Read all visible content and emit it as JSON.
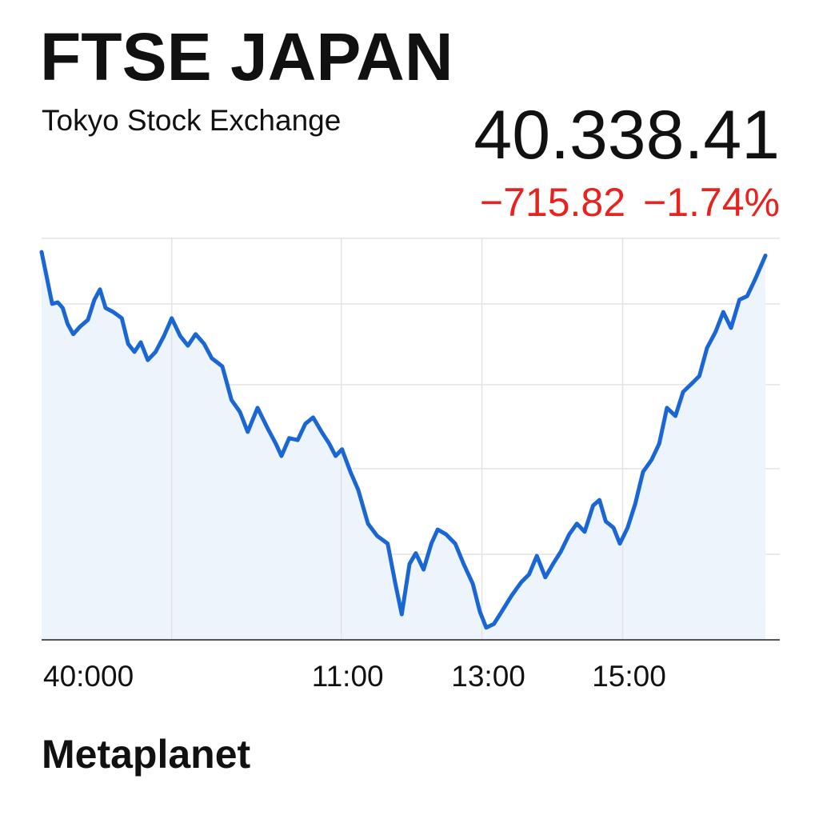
{
  "header": {
    "price": "40.338.41",
    "change": "−715.82",
    "change_percent": "−1.74%"
  },
  "footer": "Metaplanet",
  "chart_data": {
    "type": "line",
    "title": "FTSE JAPAN",
    "subtitle": "Tokyo Stock Exchange",
    "x": [
      6.74,
      6.81,
      6.89,
      6.97,
      7.04,
      7.11,
      7.19,
      7.29,
      7.4,
      7.49,
      7.57,
      7.65,
      7.76,
      7.88,
      7.97,
      8.06,
      8.15,
      8.25,
      8.36,
      8.48,
      8.59,
      8.71,
      8.82,
      8.93,
      9.05,
      9.16,
      9.31,
      9.44,
      9.56,
      9.67,
      9.81,
      9.95,
      10.07,
      10.15,
      10.26,
      10.38,
      10.49,
      10.6,
      10.72,
      10.83,
      10.92,
      11.01,
      11.13,
      11.24,
      11.38,
      11.51,
      11.66,
      11.77,
      11.86,
      11.97,
      12.06,
      12.17,
      12.28,
      12.37,
      12.49,
      12.62,
      12.74,
      12.87,
      12.97,
      13.06,
      13.17,
      13.28,
      13.42,
      13.56,
      13.67,
      13.78,
      13.9,
      14.01,
      14.12,
      14.24,
      14.35,
      14.46,
      14.58,
      14.67,
      14.76,
      14.87,
      14.96,
      15.07,
      15.18,
      15.29,
      15.41,
      15.52,
      15.63,
      15.75,
      15.86,
      15.98,
      16.09,
      16.2,
      16.32,
      16.43,
      16.54,
      16.66,
      16.77,
      16.88,
      17.03
    ],
    "series": [
      {
        "name": "FTSE JAPAN",
        "color": "#1a66d4",
        "values": [
          40348,
          40283,
          40208,
          40212,
          40197,
          40154,
          40126,
          40147,
          40165,
          40219,
          40247,
          40197,
          40186,
          40169,
          40100,
          40078,
          40104,
          40056,
          40078,
          40121,
          40169,
          40121,
          40095,
          40126,
          40100,
          40061,
          40039,
          39948,
          39916,
          39862,
          39927,
          39873,
          39830,
          39797,
          39845,
          39840,
          39884,
          39901,
          39862,
          39830,
          39797,
          39815,
          39754,
          39706,
          39614,
          39581,
          39560,
          39451,
          39369,
          39505,
          39534,
          39490,
          39560,
          39598,
          39585,
          39560,
          39505,
          39451,
          39376,
          39333,
          39343,
          39376,
          39419,
          39456,
          39477,
          39527,
          39469,
          39505,
          39538,
          39585,
          39614,
          39592,
          39663,
          39678,
          39620,
          39603,
          39560,
          39603,
          39668,
          39754,
          39786,
          39830,
          39927,
          39905,
          39970,
          39992,
          40013,
          40089,
          40132,
          40186,
          40143,
          40219,
          40229,
          40273,
          40338.41
        ]
      }
    ],
    "xlim": [
      6.74,
      17.2
    ],
    "xticks": [
      {
        "value": 8.59,
        "label": "40:000"
      },
      {
        "value": 11,
        "label": "11:00"
      },
      {
        "value": 13,
        "label": "13:00"
      },
      {
        "value": 15,
        "label": "15:00"
      }
    ],
    "ylim": [
      39300,
      40385
    ],
    "fill": "#eef4fc",
    "grid": true
  }
}
